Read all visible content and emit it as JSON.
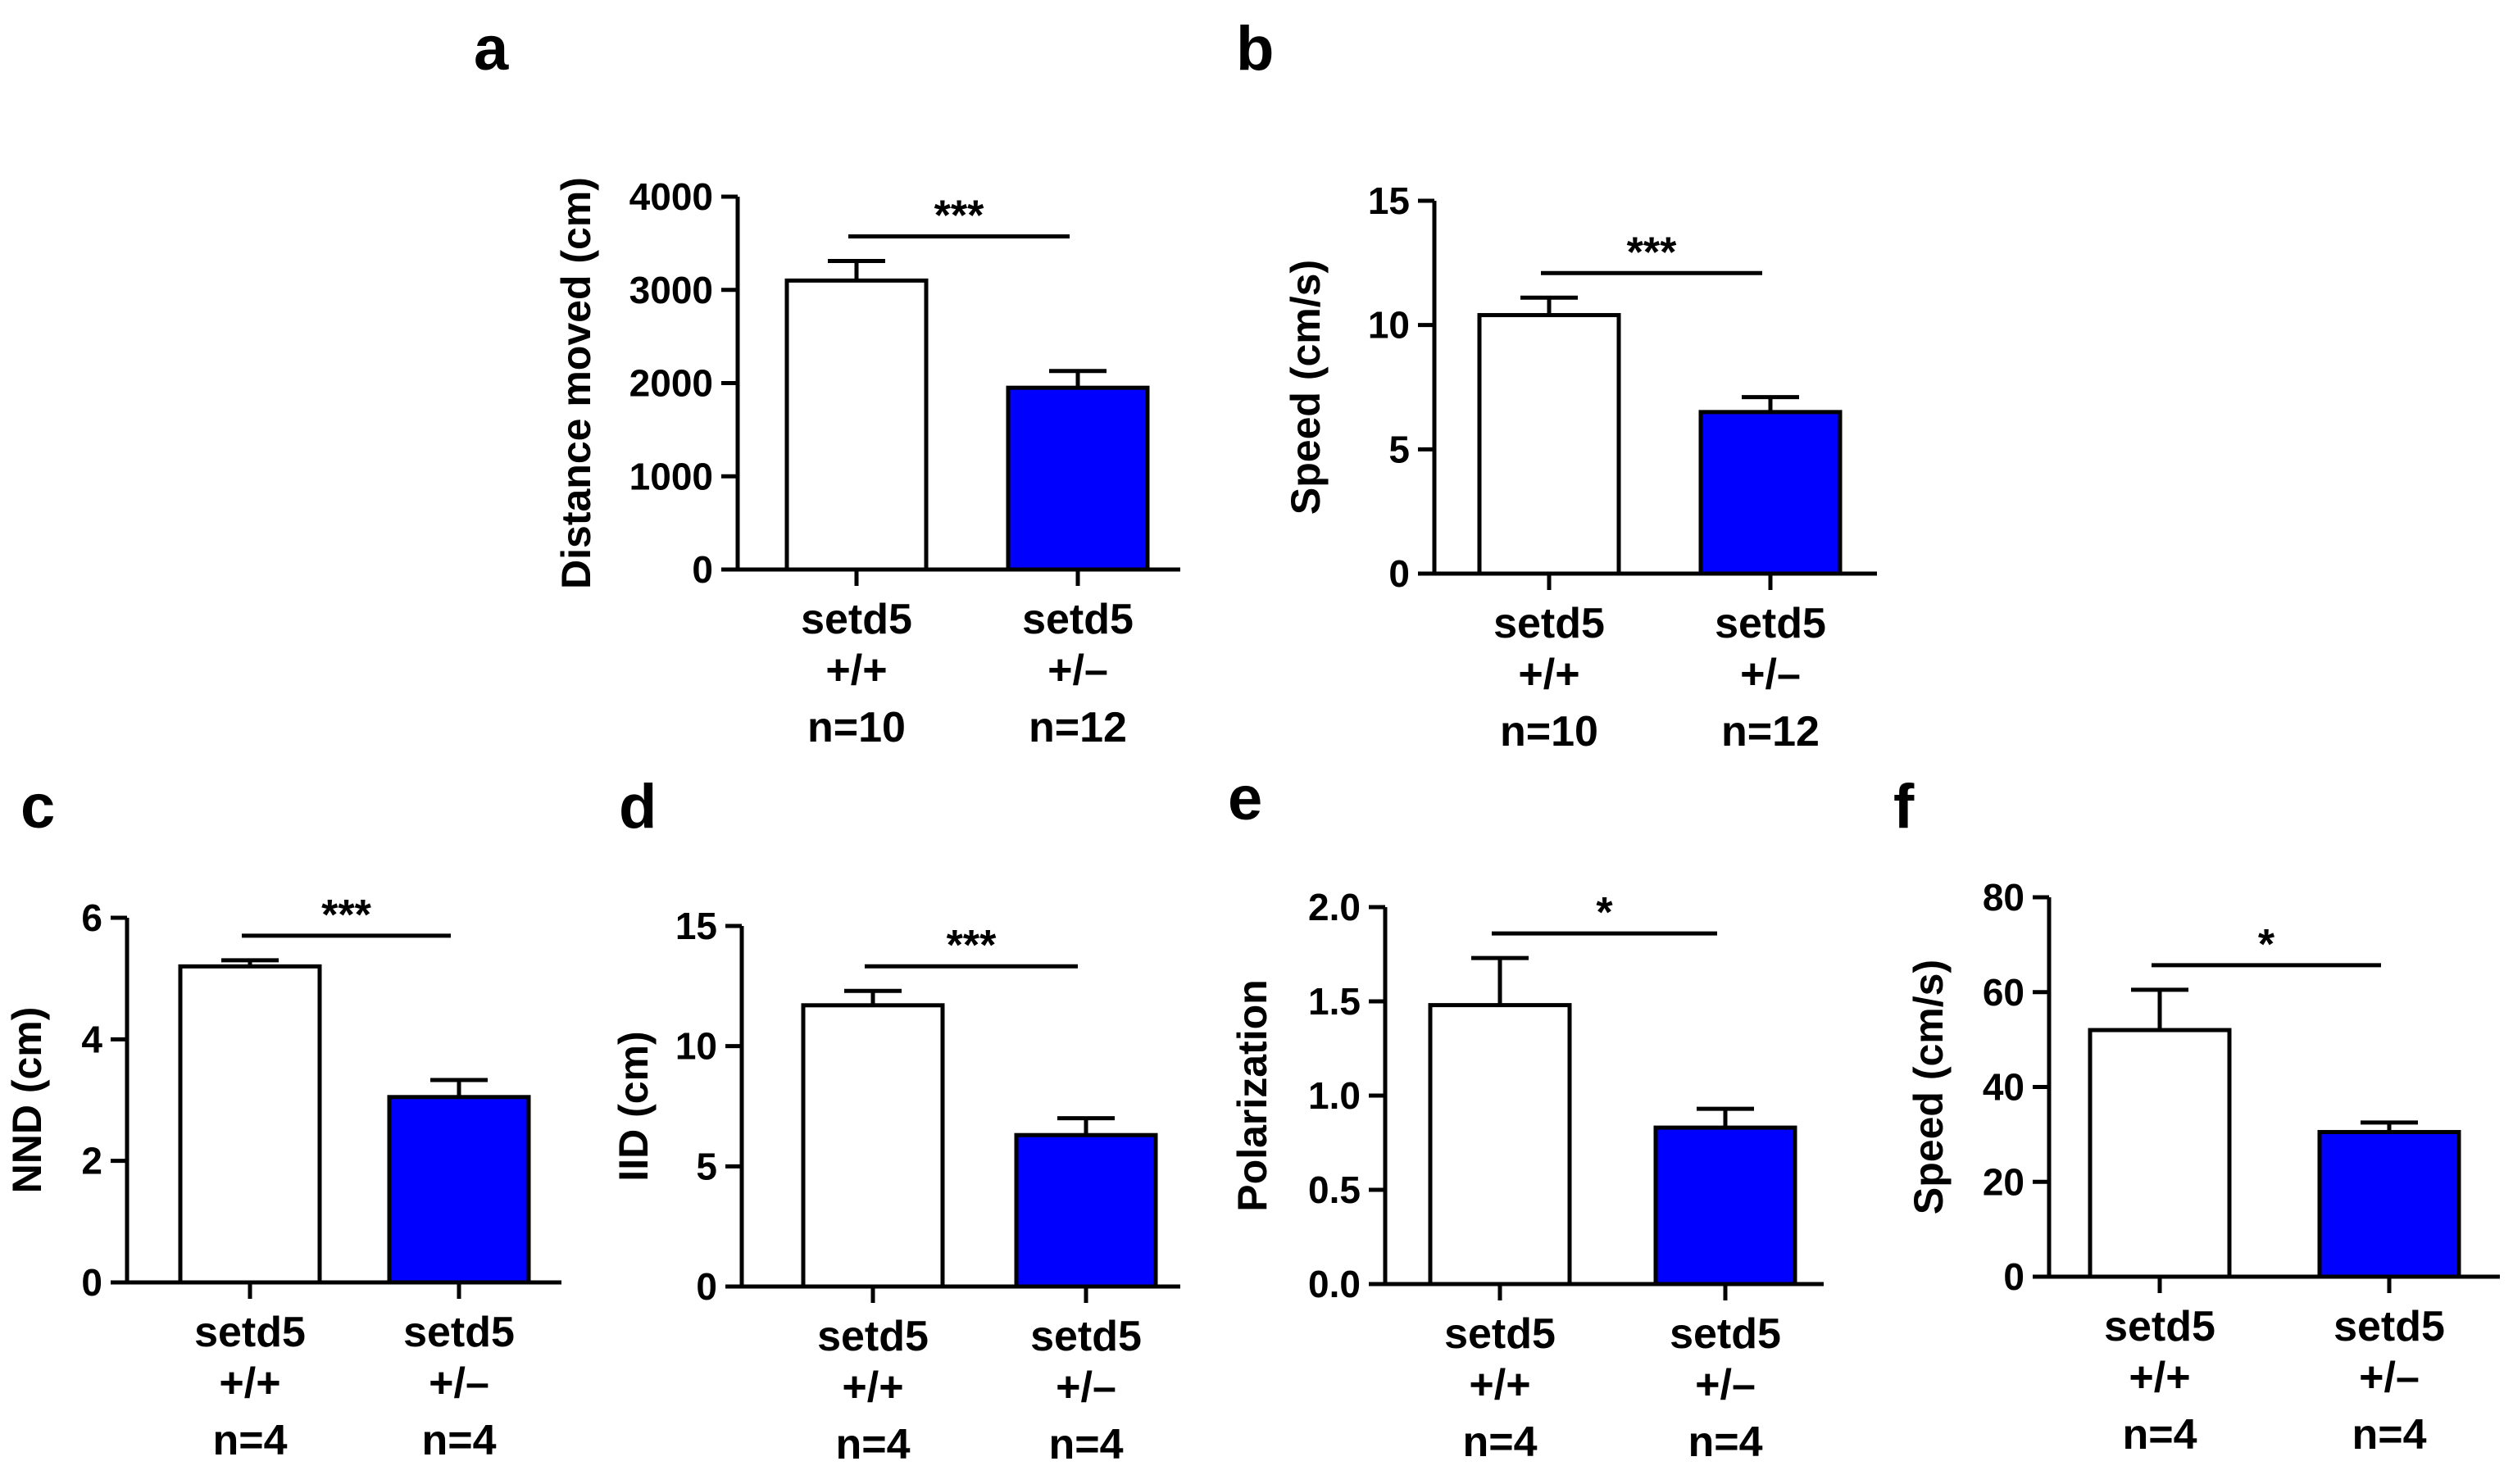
{
  "colors": {
    "wild_type_fill": "#ffffff",
    "mutant_fill": "#0000ff",
    "line": "#000000"
  },
  "chart_data": [
    {
      "panel": "a",
      "type": "bar",
      "ylabel": "Distance moved (cm)",
      "ylim": [
        0,
        4000
      ],
      "yticks": [
        0,
        1000,
        2000,
        3000,
        4000
      ],
      "categories": [
        {
          "name": "setd5",
          "genotype": "+/+",
          "n": "n=10"
        },
        {
          "name": "setd5",
          "genotype": "+/–",
          "n": "n=12"
        }
      ],
      "values": [
        3100,
        1950
      ],
      "errors": [
        210,
        180
      ],
      "significance": "***"
    },
    {
      "panel": "b",
      "type": "bar",
      "ylabel": "Speed (cm/s)",
      "ylim": [
        0,
        15
      ],
      "yticks": [
        0,
        5,
        10,
        15
      ],
      "categories": [
        {
          "name": "setd5",
          "genotype": "+/+",
          "n": "n=10"
        },
        {
          "name": "setd5",
          "genotype": "+/–",
          "n": "n=12"
        }
      ],
      "values": [
        10.4,
        6.5
      ],
      "errors": [
        0.7,
        0.6
      ],
      "significance": "***"
    },
    {
      "panel": "c",
      "type": "bar",
      "ylabel": "NND (cm)",
      "ylim": [
        0,
        6
      ],
      "yticks": [
        0,
        2,
        4,
        6
      ],
      "categories": [
        {
          "name": "setd5",
          "genotype": "+/+",
          "n": "n=4"
        },
        {
          "name": "setd5",
          "genotype": "+/–",
          "n": "n=4"
        }
      ],
      "values": [
        5.2,
        3.05
      ],
      "errors": [
        0.1,
        0.28
      ],
      "significance": "***"
    },
    {
      "panel": "d",
      "type": "bar",
      "ylabel": "IID (cm)",
      "ylim": [
        0,
        15
      ],
      "yticks": [
        0,
        5,
        10,
        15
      ],
      "categories": [
        {
          "name": "setd5",
          "genotype": "+/+",
          "n": "n=4"
        },
        {
          "name": "setd5",
          "genotype": "+/–",
          "n": "n=4"
        }
      ],
      "values": [
        11.7,
        6.3
      ],
      "errors": [
        0.6,
        0.7
      ],
      "significance": "***"
    },
    {
      "panel": "e",
      "type": "bar",
      "ylabel": "Polarization",
      "ylim": [
        0,
        2
      ],
      "yticks": [
        0.0,
        0.5,
        1.0,
        1.5,
        2.0
      ],
      "tick_decimals": 1,
      "categories": [
        {
          "name": "setd5",
          "genotype": "+/+",
          "n": "n=4"
        },
        {
          "name": "setd5",
          "genotype": "+/–",
          "n": "n=4"
        }
      ],
      "values": [
        1.48,
        0.83
      ],
      "errors": [
        0.25,
        0.1
      ],
      "significance": "*"
    },
    {
      "panel": "f",
      "type": "bar",
      "ylabel": "Speed (cm/s)",
      "ylim": [
        0,
        80
      ],
      "yticks": [
        0,
        20,
        40,
        60,
        80
      ],
      "categories": [
        {
          "name": "setd5",
          "genotype": "+/+",
          "n": "n=4"
        },
        {
          "name": "setd5",
          "genotype": "+/–",
          "n": "n=4"
        }
      ],
      "values": [
        52,
        30.5
      ],
      "errors": [
        8.5,
        2
      ],
      "significance": "*"
    }
  ]
}
